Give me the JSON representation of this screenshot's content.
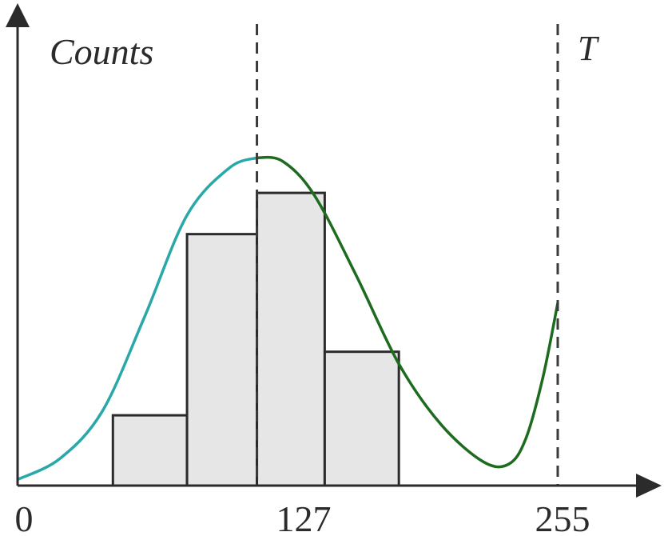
{
  "chart_data": {
    "type": "bar",
    "ylabel": "Counts",
    "x_ticks": [
      "0",
      "127",
      "255"
    ],
    "xlim": [
      0,
      255
    ],
    "bars": [
      {
        "x0": 45,
        "x1": 80,
        "value": 104
      },
      {
        "x0": 80,
        "x1": 113,
        "value": 372
      },
      {
        "x0": 113,
        "x1": 145,
        "value": 433
      },
      {
        "x0": 145,
        "x1": 180,
        "value": 198
      }
    ],
    "ylim": [
      0,
      600
    ],
    "markers": [
      {
        "x": 113,
        "label": ""
      },
      {
        "x": 255,
        "label": "T"
      }
    ],
    "curve": [
      [
        0,
        9
      ],
      [
        20,
        40
      ],
      [
        40,
        110
      ],
      [
        60,
        250
      ],
      [
        80,
        400
      ],
      [
        100,
        470
      ],
      [
        113,
        485
      ],
      [
        125,
        480
      ],
      [
        140,
        430
      ],
      [
        160,
        310
      ],
      [
        180,
        180
      ],
      [
        200,
        90
      ],
      [
        220,
        35
      ],
      [
        232,
        32
      ],
      [
        240,
        70
      ],
      [
        248,
        160
      ],
      [
        255,
        270
      ]
    ],
    "curve_colors": {
      "left": "#2aa7a8",
      "right": "#1d6b1f"
    },
    "grid": false
  }
}
